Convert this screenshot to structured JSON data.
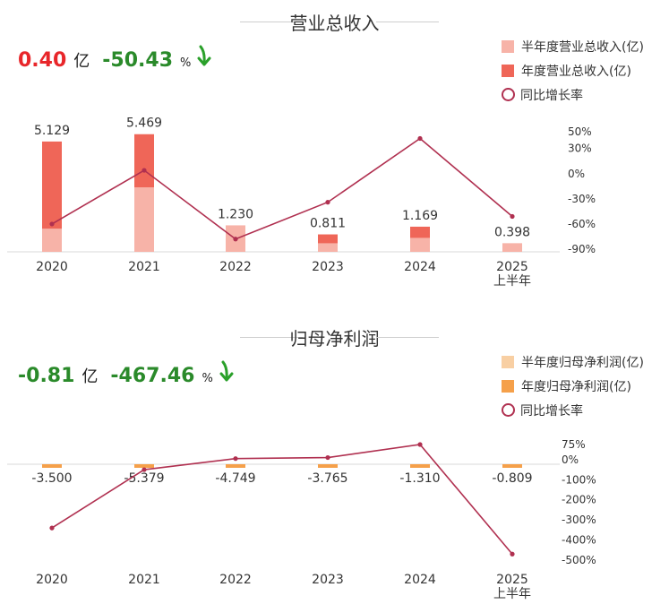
{
  "charts": [
    {
      "id": "revenue",
      "title": "营业总收入",
      "summary": {
        "value": "0.40",
        "unit": "亿",
        "change": "-50.43",
        "change_unit": "%",
        "value_color": "#e8262a",
        "change_color": "#2a8a2a",
        "arrow_color": "#2aa02a",
        "arrow_icon": "down-arrow-icon"
      },
      "legend": [
        {
          "label": "半年度营业总收入(亿)",
          "color": "#f7b3a8",
          "kind": "square"
        },
        {
          "label": "年度营业总收入(亿)",
          "color": "#ef6658",
          "kind": "square"
        },
        {
          "label": "同比增长率",
          "color": "#b03050",
          "kind": "circle"
        }
      ]
    },
    {
      "id": "netprofit",
      "title": "归母净利润",
      "summary": {
        "value": "-0.81",
        "unit": "亿",
        "change": "-467.46",
        "change_unit": "%",
        "value_color": "#2a8a2a",
        "change_color": "#2a8a2a",
        "arrow_color": "#2aa02a",
        "arrow_icon": "down-arrow-icon"
      },
      "legend": [
        {
          "label": "半年度归母净利润(亿)",
          "color": "#f8cfa3",
          "kind": "square"
        },
        {
          "label": "年度归母净利润(亿)",
          "color": "#f5a04a",
          "kind": "square"
        },
        {
          "label": "同比增长率",
          "color": "#b03050",
          "kind": "circle"
        }
      ]
    }
  ],
  "chart_data": [
    {
      "type": "bar",
      "title": "营业总收入",
      "categories": [
        "2020",
        "2021",
        "2022",
        "2023",
        "2024",
        "2025\n上半年"
      ],
      "series": [
        {
          "name": "半年度营业总收入(亿)",
          "values": [
            1.08,
            3.0,
            1.23,
            0.4,
            0.65,
            0.398
          ],
          "color": "#f7b3a8"
        },
        {
          "name": "年度营业总收入(亿)",
          "values": [
            5.129,
            5.469,
            1.23,
            0.811,
            1.169,
            0.398
          ],
          "color": "#ef6658"
        },
        {
          "name": "同比增长率",
          "type": "line",
          "values": [
            -60,
            4,
            -78,
            -34,
            42,
            -51
          ],
          "color": "#b03050"
        }
      ],
      "data_labels": [
        "5.129",
        "5.469",
        "1.230",
        "0.811",
        "1.169",
        "0.398"
      ],
      "y_right_ticks": [
        "50%",
        "30%",
        "0%",
        "-30%",
        "-60%",
        "-90%"
      ],
      "y_right_range": [
        -90,
        50
      ],
      "ylim": [
        0,
        6
      ]
    },
    {
      "type": "bar",
      "title": "归母净利润",
      "categories": [
        "2020",
        "2021",
        "2022",
        "2023",
        "2024",
        "2025\n上半年"
      ],
      "series": [
        {
          "name": "半年度归母净利润(亿)",
          "values": [
            -0.05,
            -0.08,
            -0.07,
            -0.06,
            -0.03,
            -0.02
          ],
          "color": "#f8cfa3"
        },
        {
          "name": "年度归母净利润(亿)",
          "values": [
            -3.5,
            -5.379,
            -4.749,
            -3.765,
            -1.31,
            -0.809
          ],
          "color": "#f5a04a"
        },
        {
          "name": "同比增长率",
          "type": "line",
          "values": [
            -340,
            -50,
            5,
            10,
            75,
            -470
          ],
          "color": "#b03050"
        }
      ],
      "data_labels": [
        "-3.500",
        "-5.379",
        "-4.749",
        "-3.765",
        "-1.310",
        "-0.809"
      ],
      "y_right_ticks": [
        "75%",
        "0%",
        "-100%",
        "-200%",
        "-300%",
        "-400%",
        "-500%"
      ],
      "y_right_range": [
        -500,
        75
      ]
    }
  ]
}
